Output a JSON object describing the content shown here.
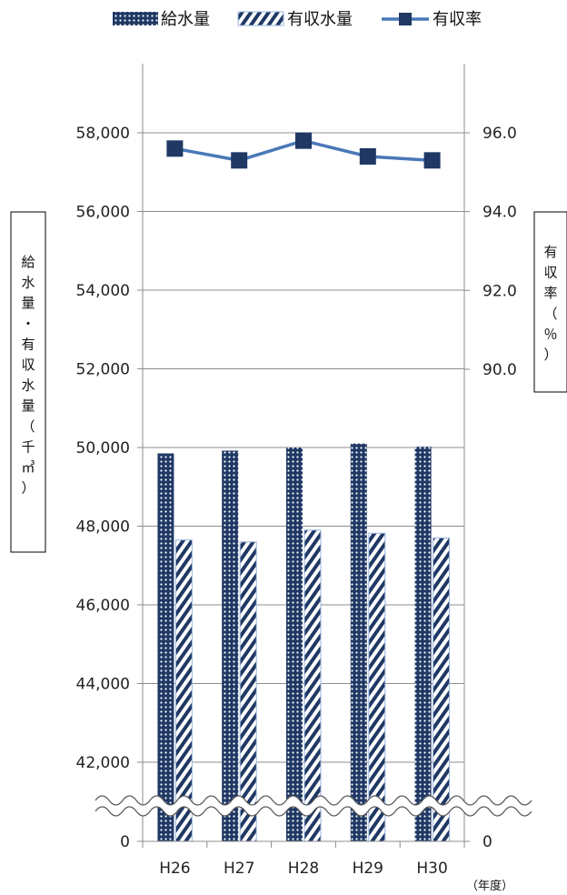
{
  "chart_data": {
    "type": "bar",
    "categories": [
      "H26",
      "H27",
      "H28",
      "H29",
      "H30"
    ],
    "series": [
      {
        "name": "給水量",
        "kind": "bar",
        "pattern": "dots",
        "color": "#1f3864",
        "values": [
          49850,
          49920,
          50000,
          50100,
          50020
        ]
      },
      {
        "name": "有収水量",
        "kind": "bar",
        "pattern": "stripes",
        "color": "#1f3864",
        "values": [
          47650,
          47600,
          47900,
          47820,
          47700
        ]
      },
      {
        "name": "有収率",
        "kind": "line",
        "axis": "right",
        "color": "#4a78b8",
        "marker_color": "#1f3864",
        "values": [
          95.6,
          95.3,
          95.8,
          95.4,
          95.3
        ]
      }
    ],
    "left_axis": {
      "label": "給水量・有収水量（千㎥）",
      "label_chars": [
        "給",
        "水",
        "量",
        "・",
        "有",
        "収",
        "水",
        "量",
        "（",
        "千",
        "㎥",
        "）"
      ],
      "ticks": [
        0,
        42000,
        44000,
        46000,
        48000,
        50000,
        52000,
        54000,
        56000,
        58000
      ],
      "tick_labels": [
        "0",
        "42,000",
        "44,000",
        "46,000",
        "48,000",
        "50,000",
        "52,000",
        "54,000",
        "56,000",
        "58,000"
      ],
      "broken": true,
      "range": [
        41000,
        59500
      ]
    },
    "right_axis": {
      "label": "有収率（％）",
      "label_chars": [
        "有",
        "収",
        "率",
        "（",
        "％",
        "）"
      ],
      "ticks": [
        0,
        90.0,
        92.0,
        94.0,
        96.0
      ],
      "tick_labels": [
        "0",
        "90.0",
        "92.0",
        "94.0",
        "96.0"
      ],
      "broken": true,
      "range": [
        90,
        96
      ]
    },
    "x_unit": "（年度）",
    "legend_position": "top",
    "grid": true
  }
}
